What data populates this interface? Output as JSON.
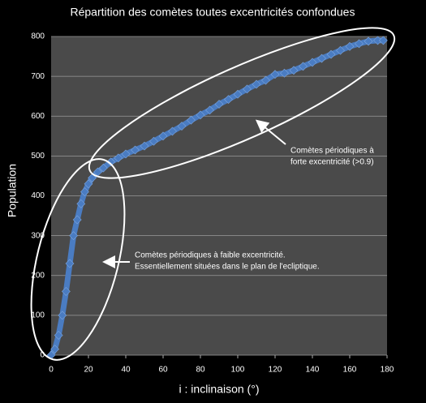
{
  "chart_data": {
    "type": "line",
    "title": "Répartition des comètes toutes excentricités confondues",
    "x_label": "i : inclinaison (°)",
    "y_label": "Population",
    "xlim": [
      0,
      180
    ],
    "xticks": [
      0,
      20,
      40,
      60,
      80,
      100,
      120,
      140,
      160,
      180
    ],
    "ylim": [
      0,
      800
    ],
    "yticks": [
      0,
      100,
      200,
      300,
      400,
      500,
      600,
      700,
      800
    ],
    "grid": true,
    "series": [
      {
        "color": "#4a7cc2",
        "x": [
          0,
          2,
          4,
          6,
          8,
          10,
          12,
          14,
          16,
          18,
          20,
          22,
          25,
          28,
          32,
          36,
          40,
          45,
          50,
          55,
          60,
          65,
          70,
          75,
          80,
          85,
          90,
          95,
          100,
          105,
          110,
          115,
          120,
          125,
          130,
          135,
          140,
          145,
          150,
          155,
          160,
          165,
          170,
          175,
          178
        ],
        "values": [
          0,
          15,
          50,
          100,
          160,
          230,
          300,
          340,
          380,
          410,
          430,
          445,
          460,
          470,
          485,
          495,
          505,
          515,
          525,
          537,
          550,
          562,
          575,
          590,
          603,
          615,
          630,
          642,
          655,
          668,
          680,
          690,
          705,
          708,
          715,
          725,
          735,
          745,
          755,
          765,
          775,
          782,
          788,
          790,
          790
        ]
      }
    ],
    "annotations": [
      [
        "Comètes périodiques à",
        "forte excentricité (>0.9)"
      ],
      [
        "Comètes périodiques à faible excentricité.",
        "Essentiellement situées dans le plan de l'ecliptique."
      ]
    ]
  }
}
